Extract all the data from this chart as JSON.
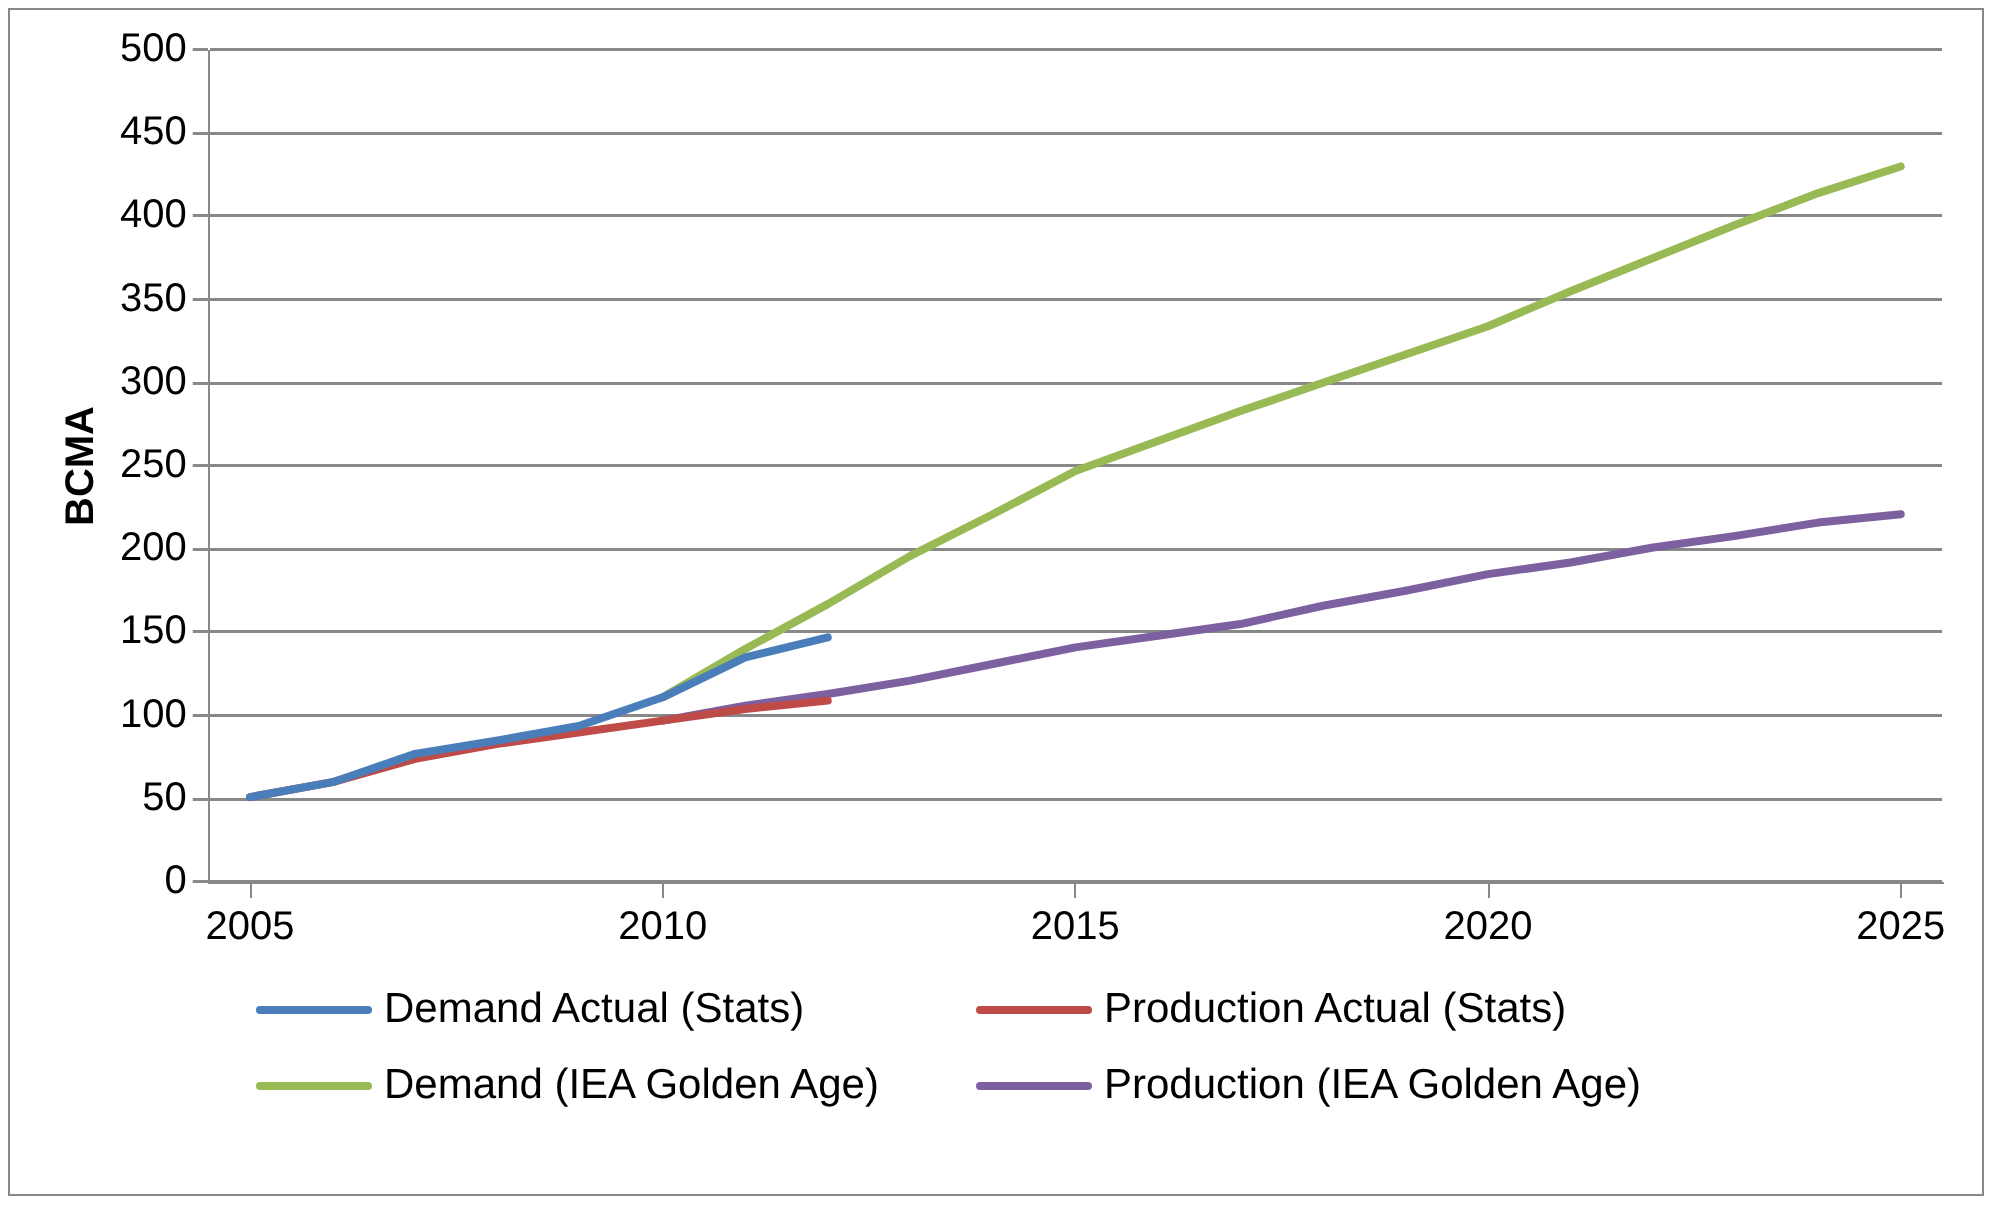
{
  "chart_data": {
    "type": "line",
    "ylabel": "BCMA",
    "xlim": [
      2004.5,
      2025.5
    ],
    "xticks": [
      2005,
      2010,
      2015,
      2020,
      2025
    ],
    "ylim": [
      0,
      500
    ],
    "yticks": [
      0,
      50,
      100,
      150,
      200,
      250,
      300,
      350,
      400,
      450,
      500
    ],
    "grid": "y",
    "legend": "bottom",
    "marker": "none",
    "line_style": "solid",
    "series": [
      {
        "name": "Demand Actual (Stats)",
        "color": "#4a7ebb",
        "x": [
          2005,
          2006,
          2007,
          2008,
          2009,
          2010,
          2011,
          2012
        ],
        "values": [
          51,
          60,
          77,
          85,
          94,
          111,
          135,
          147
        ]
      },
      {
        "name": "Production Actual (Stats)",
        "color": "#be4b48",
        "x": [
          2005,
          2006,
          2007,
          2008,
          2009,
          2010,
          2011,
          2012
        ],
        "values": [
          51,
          60,
          74,
          83,
          90,
          97,
          104,
          109
        ]
      },
      {
        "name": "Demand (IEA Golden Age)",
        "color": "#98b954",
        "x": [
          2010,
          2011,
          2012,
          2013,
          2014,
          2015,
          2016,
          2017,
          2018,
          2019,
          2020,
          2021,
          2022,
          2023,
          2024,
          2025
        ],
        "values": [
          111,
          140,
          167,
          196,
          221,
          247,
          265,
          283,
          300,
          317,
          334,
          355,
          375,
          395,
          414,
          430
        ]
      },
      {
        "name": "Production (IEA Golden Age)",
        "color": "#7d60a0",
        "x": [
          2010,
          2011,
          2012,
          2013,
          2014,
          2015,
          2016,
          2017,
          2018,
          2019,
          2020,
          2021,
          2022,
          2023,
          2024,
          2025
        ],
        "values": [
          97,
          106,
          113,
          121,
          131,
          141,
          148,
          155,
          166,
          175,
          185,
          192,
          201,
          208,
          216,
          221
        ]
      }
    ]
  }
}
